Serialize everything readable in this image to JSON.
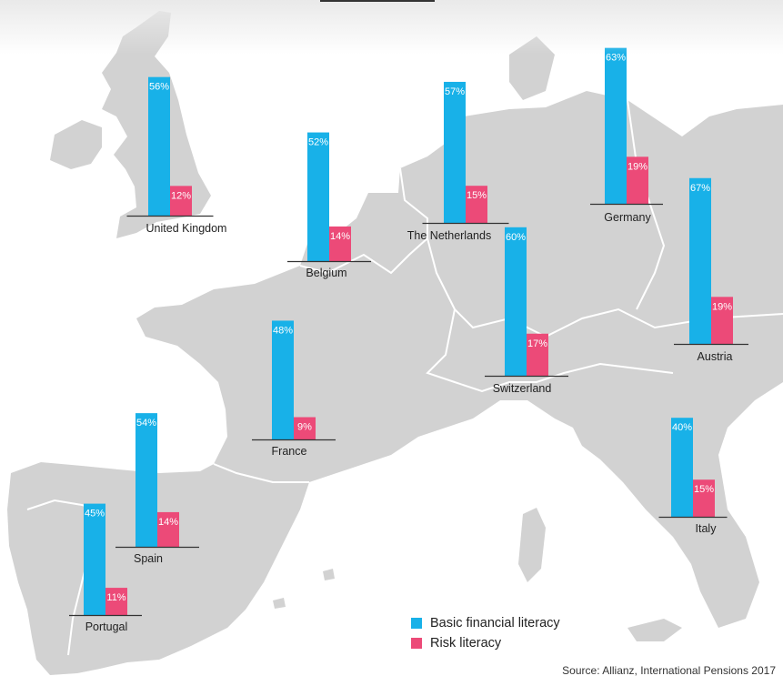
{
  "colors": {
    "basic": "#18b1e8",
    "risk": "#ec4a78",
    "land": "#d2d2d2",
    "border": "#ffffff",
    "axis": "#333333"
  },
  "legend": {
    "basic_label": "Basic financial literacy",
    "risk_label": "Risk literacy"
  },
  "source": "Source: Allianz, International Pensions 2017",
  "chart_data": {
    "type": "bar",
    "ylabel": "",
    "categories": [
      "United Kingdom",
      "Belgium",
      "The Netherlands",
      "Germany",
      "Switzerland",
      "Austria",
      "France",
      "Italy",
      "Spain",
      "Portugal"
    ],
    "series": [
      {
        "name": "Basic financial literacy",
        "values": [
          56,
          52,
          57,
          63,
          60,
          67,
          48,
          40,
          54,
          45
        ]
      },
      {
        "name": "Risk literacy",
        "values": [
          12,
          14,
          15,
          19,
          17,
          19,
          9,
          15,
          14,
          11
        ]
      }
    ],
    "value_format": "{v}%",
    "ylim": [
      0,
      100
    ]
  }
}
